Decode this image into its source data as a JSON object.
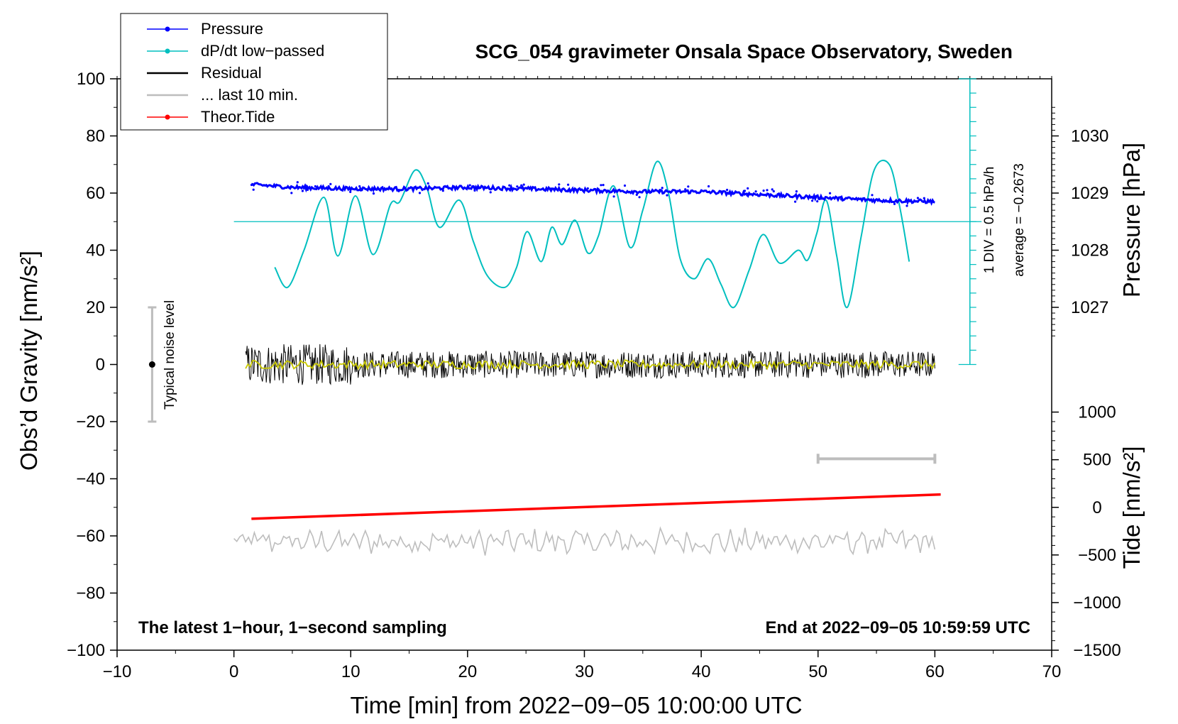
{
  "chart_data": {
    "type": "line",
    "title": "SCG_054 gravimeter Onsala Space Observatory, Sweden",
    "xlabel": "Time [min] from 2022−09−05 10:00:00 UTC",
    "ylabel_left": "Obs’d Gravity [nm/s²]",
    "ylabel_right_pressure": "Pressure [hPa]",
    "ylabel_right_tide": "Tide [nm/s²]",
    "xlim": [
      -10,
      70
    ],
    "ylim": [
      -100,
      100
    ],
    "x_ticks": [
      -10,
      0,
      10,
      20,
      30,
      40,
      50,
      60,
      70
    ],
    "x_tick_labels": [
      "−10",
      "0",
      "10",
      "20",
      "30",
      "40",
      "50",
      "60",
      "70"
    ],
    "y_ticks": [
      100,
      80,
      60,
      40,
      20,
      0,
      -20,
      -40,
      -60,
      -80,
      -100
    ],
    "y_tick_labels": [
      "100",
      "80",
      "60",
      "40",
      "20",
      "0",
      "−20",
      "−40",
      "−60",
      "−80",
      "−100"
    ],
    "pressure_axis": {
      "ticks": [
        1030,
        1029,
        1028,
        1027
      ],
      "tick_labels": [
        "1030",
        "1029",
        "1028",
        "1027"
      ],
      "gravity_at_1030": 80,
      "gravity_per_hpa": 20
    },
    "tide_axis": {
      "ticks": [
        1000,
        500,
        0,
        -500,
        -1000,
        -1500
      ],
      "tick_labels": [
        "1000",
        "500",
        "0",
        "−500",
        "−1000",
        "−1500"
      ],
      "gravity_at_0": -50,
      "gravity_per_500": 16.67
    },
    "dpdt_axis": {
      "x": 63,
      "y_top": 100,
      "y_bottom": 0,
      "div_step": 5,
      "label_div": "1 DIV = 0.5 hPa/h",
      "label_avg": "average = −0.2673",
      "average_line_y": 50
    },
    "legend": [
      {
        "label": "Pressure",
        "color": "#0000ff",
        "marker": true
      },
      {
        "label": "dP/dt low−passed",
        "color": "#00bfbf",
        "marker": true
      },
      {
        "label": "Residual",
        "color": "#000000",
        "marker": false
      },
      {
        "label": "... last 10 min.",
        "color": "#bdbdbd",
        "marker": false
      },
      {
        "label": "Theor.Tide",
        "color": "#ff0000",
        "marker": true
      }
    ],
    "series": [
      {
        "name": "Pressure",
        "color": "#0000ff",
        "x": [
          1.5,
          5,
          10,
          15,
          20,
          25,
          30,
          35,
          40,
          45,
          50,
          55,
          60
        ],
        "y": [
          63,
          62,
          61.5,
          61.5,
          62,
          61.5,
          61,
          60.5,
          60.5,
          59.5,
          58.5,
          57.5,
          57
        ]
      },
      {
        "name": "dP/dt low−passed",
        "color": "#00bfbf",
        "x": [
          3.5,
          4.6,
          6,
          7.7,
          8.9,
          10.4,
          11.9,
          13.4,
          14.2,
          15.5,
          16.5,
          17.6,
          19.3,
          20.5,
          21.7,
          23.2,
          24.2,
          25.1,
          26.3,
          27.2,
          28.1,
          29.2,
          30.3,
          31.2,
          32.5,
          33.9,
          35,
          36.2,
          37.2,
          38.2,
          39.4,
          40.6,
          41.7,
          42.8,
          44.1,
          45.3,
          46.7,
          48.3,
          49.1,
          49.9,
          50.7,
          51.6,
          52.5,
          53.7,
          54.8,
          56.1,
          57,
          57.8
        ],
        "y": [
          34,
          27,
          40,
          58.5,
          38,
          59,
          38.5,
          56,
          57,
          68,
          62,
          48,
          57.5,
          43,
          31,
          27,
          34,
          46.5,
          36,
          48,
          42,
          50.5,
          39,
          45,
          62.5,
          41,
          54,
          71,
          60,
          37,
          30,
          37,
          28,
          20,
          33,
          45.5,
          35.5,
          40,
          36.5,
          46,
          57.5,
          38,
          20,
          45,
          68,
          70,
          55,
          36
        ]
      },
      {
        "name": "Residual",
        "color": "#000000",
        "x": [
          1,
          60
        ],
        "y": [
          0,
          0
        ],
        "noise_amplitude": 6
      },
      {
        "name": "Residual smoothed",
        "color": "#c8c800",
        "x": [
          1,
          60
        ],
        "y": [
          0,
          0
        ]
      },
      {
        "name": "... last 10 min.",
        "color": "#bdbdbd",
        "x": [
          0,
          60
        ],
        "y": [
          -62,
          -62
        ]
      },
      {
        "name": "Theor.Tide",
        "color": "#ff0000",
        "x": [
          1.5,
          60.5
        ],
        "y": [
          -54,
          -45.5
        ]
      }
    ],
    "noise_bar": {
      "x": -7,
      "y": 0,
      "low": -20,
      "high": 20,
      "label": "Typical noise level"
    },
    "ten_min_bar": {
      "x_start": 50,
      "x_end": 60,
      "y": -33
    },
    "footer_left": "The latest 1−hour, 1−second sampling",
    "footer_right": "End at 2022−09−05 10:59:59 UTC"
  }
}
